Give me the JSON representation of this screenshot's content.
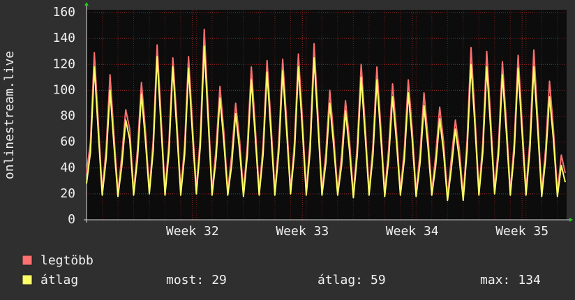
{
  "chart_data": {
    "type": "line",
    "y_label": "onlinestream.live",
    "ylim": [
      0,
      160
    ],
    "yticks": [
      0,
      20,
      40,
      60,
      80,
      100,
      120,
      140,
      160
    ],
    "grid": true,
    "categories": [
      null,
      null,
      null,
      null,
      null,
      null,
      null,
      null,
      null,
      null,
      null,
      null,
      null,
      null,
      null,
      null,
      null,
      null,
      null,
      null,
      null,
      null,
      null,
      null,
      null,
      null,
      null,
      "Week 32",
      null,
      null,
      null,
      null,
      null,
      null,
      null,
      null,
      null,
      null,
      null,
      null,
      null,
      null,
      null,
      null,
      null,
      null,
      null,
      null,
      null,
      null,
      null,
      null,
      null,
      null,
      null,
      "Week 33",
      null,
      null,
      null,
      null,
      null,
      null,
      null,
      null,
      null,
      null,
      null,
      null,
      null,
      null,
      null,
      null,
      null,
      null,
      null,
      null,
      null,
      null,
      null,
      null,
      null,
      null,
      null,
      "Week 34",
      null,
      null,
      null,
      null,
      null,
      null,
      null,
      null,
      null,
      null,
      null,
      null,
      null,
      null,
      null,
      null,
      null,
      null,
      null,
      null,
      null,
      null,
      null,
      null,
      null,
      null,
      null,
      "Week 35",
      null,
      null,
      null,
      null,
      null,
      null,
      null,
      null,
      null,
      null,
      null
    ],
    "series": [
      {
        "name": "legtöbb",
        "color": "#ff7070",
        "values": [
          36,
          60,
          129,
          75,
          22,
          55,
          112,
          65,
          21,
          50,
          85,
          70,
          22,
          55,
          106,
          70,
          23,
          62,
          135,
          80,
          22,
          60,
          125,
          78,
          22,
          58,
          126,
          74,
          23,
          65,
          147,
          85,
          22,
          55,
          103,
          68,
          22,
          50,
          90,
          62,
          21,
          58,
          118,
          72,
          22,
          58,
          123,
          75,
          22,
          60,
          124,
          76,
          23,
          60,
          128,
          78,
          22,
          62,
          136,
          80,
          22,
          52,
          100,
          65,
          22,
          50,
          92,
          62,
          20,
          58,
          120,
          74,
          22,
          58,
          118,
          72,
          21,
          55,
          105,
          68,
          22,
          55,
          108,
          70,
          21,
          52,
          98,
          65,
          22,
          50,
          87,
          60,
          18,
          48,
          77,
          55,
          18,
          62,
          133,
          80,
          22,
          60,
          130,
          78,
          23,
          58,
          122,
          75,
          22,
          60,
          127,
          76,
          22,
          62,
          131,
          78,
          21,
          55,
          107,
          70,
          21,
          50,
          36
        ]
      },
      {
        "name": "átlag",
        "color": "#ffff66",
        "values": [
          28,
          52,
          118,
          67,
          19,
          47,
          100,
          57,
          18,
          42,
          77,
          62,
          19,
          47,
          97,
          62,
          20,
          54,
          126,
          72,
          19,
          52,
          118,
          70,
          19,
          50,
          117,
          66,
          20,
          57,
          134,
          77,
          19,
          47,
          94,
          60,
          19,
          42,
          82,
          54,
          18,
          50,
          108,
          64,
          19,
          50,
          114,
          67,
          19,
          52,
          115,
          68,
          20,
          52,
          118,
          70,
          19,
          54,
          125,
          72,
          19,
          44,
          90,
          57,
          19,
          42,
          84,
          54,
          17,
          50,
          110,
          66,
          19,
          50,
          108,
          64,
          18,
          47,
          95,
          60,
          19,
          47,
          98,
          62,
          18,
          44,
          88,
          57,
          19,
          42,
          78,
          52,
          15,
          40,
          70,
          47,
          15,
          54,
          120,
          72,
          19,
          52,
          118,
          70,
          20,
          50,
          112,
          67,
          19,
          52,
          117,
          68,
          19,
          54,
          118,
          70,
          18,
          47,
          95,
          62,
          18,
          42,
          29
        ]
      }
    ],
    "stats": [
      {
        "label": "most:",
        "value": 29
      },
      {
        "label": "átlag:",
        "value": 59
      },
      {
        "label": "max:",
        "value": 134
      }
    ]
  }
}
